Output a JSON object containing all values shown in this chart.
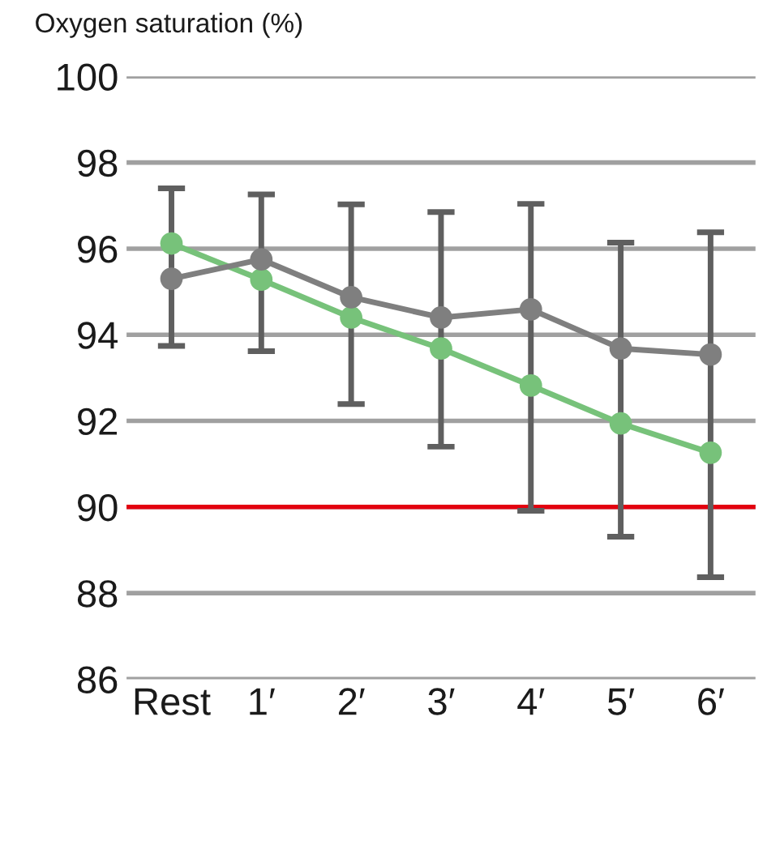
{
  "chart_data": {
    "type": "line",
    "ylabel": "Oxygen saturation (%)",
    "categories": [
      "Rest",
      "1′",
      "2′",
      "3′",
      "4′",
      "5′",
      "6′"
    ],
    "series": [
      {
        "color": "#77c27a",
        "values": [
          96.12,
          95.28,
          94.4,
          93.68,
          92.82,
          91.94,
          91.26
        ]
      },
      {
        "color": "#7f7f7f",
        "values": [
          95.3,
          95.75,
          94.87,
          94.4,
          94.59,
          93.68,
          93.54
        ],
        "errors": [
          [
            93.74,
            97.4
          ],
          [
            93.62,
            97.26
          ],
          [
            92.39,
            97.03
          ],
          [
            91.4,
            96.85
          ],
          [
            89.91,
            97.04
          ],
          [
            89.31,
            96.14
          ],
          [
            88.37,
            96.38
          ]
        ]
      }
    ],
    "ylim": [
      86,
      100
    ],
    "yticks": [
      86,
      88,
      90,
      92,
      94,
      96,
      98,
      100
    ],
    "ref_lines": [
      {
        "axis": "y",
        "value": 90,
        "color": "#e3000f"
      }
    ],
    "grid": "y",
    "marker": "circle",
    "legend": false
  }
}
